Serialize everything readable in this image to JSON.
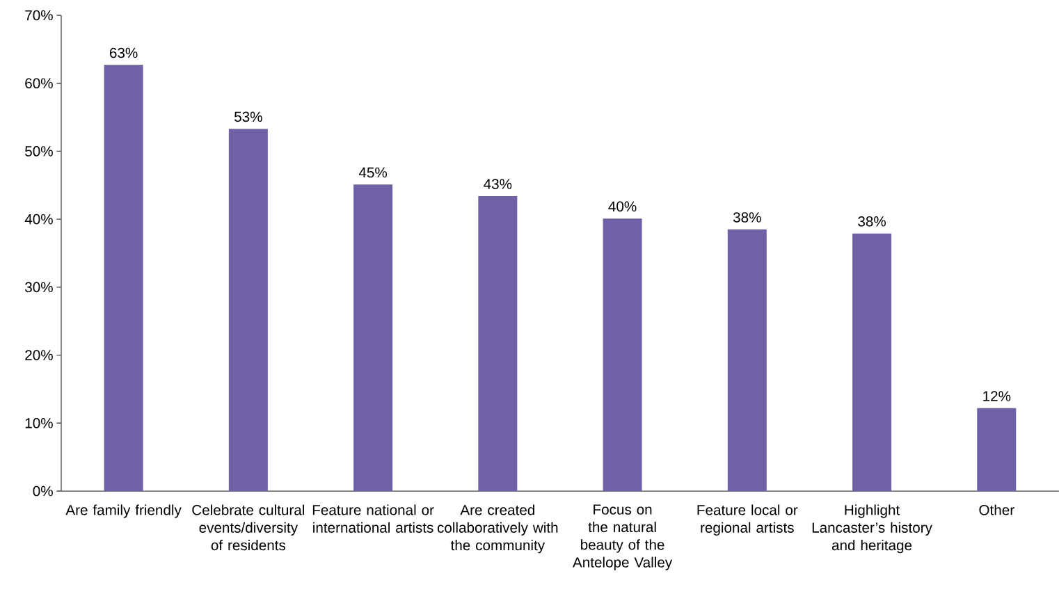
{
  "chart_data": {
    "type": "bar",
    "categories": [
      "Are family friendly",
      "Celebrate cultural events/diversity of residents",
      "Feature national or international artists",
      "Are created collaboratively with the community",
      "Focus on the natural beauty of the Antelope Valley",
      "Feature local or regional artists",
      "Highlight Lancaster’s history and heritage",
      "Other"
    ],
    "values": [
      62.7,
      53.3,
      45.1,
      43.4,
      40.1,
      38.5,
      37.9,
      12.2
    ],
    "value_labels": [
      "63%",
      "53%",
      "45%",
      "43%",
      "40%",
      "38%",
      "38%",
      "12%"
    ],
    "color": "#7060a8",
    "ylim": [
      0,
      70
    ],
    "yticks": [
      {
        "value": 0,
        "label": "0%"
      },
      {
        "value": 10,
        "label": "10%"
      },
      {
        "value": 20,
        "label": "20%"
      },
      {
        "value": 30,
        "label": "30%"
      },
      {
        "value": 40,
        "label": "40%"
      },
      {
        "value": 50,
        "label": "50%"
      },
      {
        "value": 60,
        "label": "60%"
      },
      {
        "value": 70,
        "label": "70%"
      }
    ]
  }
}
